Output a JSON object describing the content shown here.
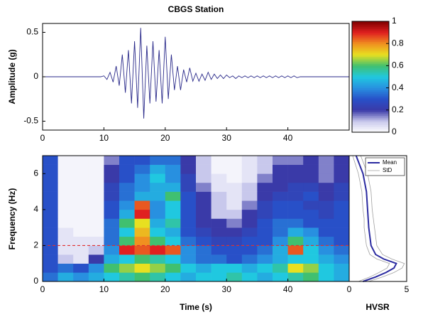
{
  "chart_data": [
    {
      "type": "line",
      "title": "CBGS Station",
      "ylabel": "Amplitude (g)",
      "color": "#2a2a8a",
      "xlim": [
        0,
        50
      ],
      "xticks": [
        0,
        10,
        20,
        30,
        40
      ],
      "ylim": [
        -0.6,
        0.6
      ],
      "yticks": [
        -0.5,
        0,
        0.5
      ],
      "x": [
        0,
        0.5,
        1,
        1.5,
        2,
        2.5,
        3,
        3.5,
        4,
        4.5,
        5,
        5.5,
        6,
        6.5,
        7,
        7.5,
        8,
        8.5,
        9,
        9.5,
        10,
        10.5,
        11,
        11.5,
        12,
        12.5,
        13,
        13.5,
        14,
        14.5,
        15,
        15.5,
        16,
        16.5,
        17,
        17.5,
        18,
        18.5,
        19,
        19.5,
        20,
        20.5,
        21,
        21.5,
        22,
        22.5,
        23,
        23.5,
        24,
        24.5,
        25,
        25.5,
        26,
        26.5,
        27,
        27.5,
        28,
        28.5,
        29,
        29.5,
        30,
        30.5,
        31,
        31.5,
        32,
        32.5,
        33,
        33.5,
        34,
        34.5,
        35,
        35.5,
        36,
        36.5,
        37,
        37.5,
        38,
        38.5,
        39,
        39.5,
        40,
        40.5,
        41,
        41.5,
        42,
        42.5,
        43,
        43.5,
        44,
        44.5,
        45,
        45.5,
        46,
        46.5,
        47,
        47.5,
        48,
        48.5,
        49,
        49.5,
        50
      ],
      "values": [
        0,
        0,
        0,
        0,
        0,
        0,
        0,
        0,
        0,
        0,
        0,
        0,
        0,
        0,
        0,
        0,
        0,
        0,
        0,
        0,
        0.01,
        -0.03,
        0.05,
        -0.06,
        0.12,
        -0.1,
        0.25,
        -0.18,
        0.3,
        -0.3,
        0.4,
        -0.35,
        0.55,
        -0.47,
        0.35,
        -0.3,
        0.4,
        -0.28,
        0.3,
        -0.3,
        0.45,
        -0.25,
        0.25,
        -0.15,
        0.12,
        -0.15,
        0.08,
        -0.06,
        0.1,
        -0.05,
        0.04,
        -0.05,
        0.03,
        -0.04,
        0.05,
        -0.03,
        0.03,
        -0.02,
        0.02,
        -0.02,
        0.02,
        -0.01,
        0.01,
        -0.02,
        0.01,
        -0.01,
        0.01,
        -0.01,
        0.01,
        -0.01,
        0.01,
        -0.01,
        0.01,
        -0.01,
        0.01,
        -0.01,
        0.01,
        -0.01,
        0.01,
        -0.01,
        0.01,
        -0.01,
        0.01,
        -0.01,
        0,
        0,
        0,
        0,
        0,
        0,
        0,
        0,
        0,
        0,
        0,
        0,
        0,
        0,
        0,
        0,
        0
      ]
    },
    {
      "type": "colorbar",
      "ylim": [
        0,
        1
      ],
      "yticks": [
        0,
        0.2,
        0.4,
        0.6,
        0.8,
        1
      ],
      "colors": [
        "#ffffff",
        "#c8c8ec",
        "#3a3aa8",
        "#2850c8",
        "#2890e0",
        "#20c8e0",
        "#40c070",
        "#e8e020",
        "#f09020",
        "#e02020",
        "#800000"
      ]
    },
    {
      "type": "heatmap",
      "xlabel": "Time (s)",
      "ylabel": "Frequency (Hz)",
      "xlim": [
        0,
        50
      ],
      "xticks": [
        0,
        10,
        20,
        30,
        40
      ],
      "ylim": [
        0,
        7
      ],
      "yticks": [
        0,
        2,
        4,
        6
      ],
      "xbins": [
        0,
        2.5,
        5,
        7.5,
        10,
        12.5,
        15,
        17.5,
        20,
        22.5,
        25,
        27.5,
        30,
        32.5,
        35,
        37.5,
        40,
        42.5,
        45,
        47.5,
        50
      ],
      "ybins": [
        0,
        0.5,
        1,
        1.5,
        2,
        2.5,
        3,
        3.5,
        4,
        4.5,
        5,
        5.5,
        6,
        6.5,
        7
      ],
      "z": [
        [
          0.35,
          0.45,
          0.4,
          0.45,
          0.5,
          0.55,
          0.6,
          0.55,
          0.5,
          0.45,
          0.5,
          0.5,
          0.55,
          0.5,
          0.45,
          0.5,
          0.55,
          0.6,
          0.5,
          0.45
        ],
        [
          0.3,
          0.35,
          0.3,
          0.4,
          0.6,
          0.65,
          0.7,
          0.65,
          0.6,
          0.5,
          0.45,
          0.5,
          0.5,
          0.45,
          0.5,
          0.55,
          0.7,
          0.65,
          0.5,
          0.45
        ],
        [
          0.3,
          0.1,
          0.05,
          0.2,
          0.45,
          0.5,
          0.6,
          0.55,
          0.5,
          0.4,
          0.35,
          0.35,
          0.3,
          0.35,
          0.4,
          0.45,
          0.5,
          0.5,
          0.45,
          0.4
        ],
        [
          0.3,
          0.05,
          0.05,
          0.1,
          0.4,
          0.9,
          0.85,
          0.9,
          0.85,
          0.4,
          0.35,
          0.3,
          0.3,
          0.3,
          0.35,
          0.45,
          0.85,
          0.5,
          0.4,
          0.35
        ],
        [
          0.3,
          0.05,
          0.05,
          0.05,
          0.35,
          0.6,
          0.8,
          0.6,
          0.5,
          0.35,
          0.3,
          0.25,
          0.25,
          0.3,
          0.3,
          0.4,
          0.6,
          0.45,
          0.35,
          0.3
        ],
        [
          0.3,
          0.05,
          0.02,
          0.02,
          0.35,
          0.5,
          0.75,
          0.5,
          0.45,
          0.3,
          0.25,
          0.2,
          0.2,
          0.25,
          0.3,
          0.35,
          0.45,
          0.4,
          0.3,
          0.3
        ],
        [
          0.3,
          0.02,
          0.02,
          0.02,
          0.35,
          0.6,
          0.7,
          0.45,
          0.55,
          0.3,
          0.2,
          0.2,
          0.15,
          0.2,
          0.3,
          0.35,
          0.35,
          0.3,
          0.3,
          0.3
        ],
        [
          0.3,
          0.02,
          0.02,
          0.02,
          0.3,
          0.45,
          0.9,
          0.4,
          0.5,
          0.3,
          0.2,
          0.1,
          0.1,
          0.2,
          0.25,
          0.3,
          0.3,
          0.3,
          0.25,
          0.3
        ],
        [
          0.3,
          0.02,
          0.02,
          0.02,
          0.3,
          0.4,
          0.85,
          0.4,
          0.5,
          0.3,
          0.2,
          0.1,
          0.05,
          0.15,
          0.25,
          0.3,
          0.3,
          0.25,
          0.25,
          0.3
        ],
        [
          0.3,
          0.02,
          0.02,
          0.02,
          0.25,
          0.35,
          0.45,
          0.45,
          0.6,
          0.3,
          0.2,
          0.1,
          0.05,
          0.1,
          0.2,
          0.25,
          0.25,
          0.3,
          0.2,
          0.25
        ],
        [
          0.3,
          0.02,
          0.02,
          0.02,
          0.25,
          0.35,
          0.4,
          0.45,
          0.45,
          0.25,
          0.15,
          0.05,
          0.05,
          0.1,
          0.2,
          0.2,
          0.25,
          0.25,
          0.2,
          0.25
        ],
        [
          0.3,
          0.02,
          0.02,
          0.02,
          0.2,
          0.3,
          0.4,
          0.5,
          0.4,
          0.25,
          0.1,
          0.05,
          0.02,
          0.05,
          0.15,
          0.2,
          0.2,
          0.2,
          0.15,
          0.2
        ],
        [
          0.3,
          0.02,
          0.02,
          0.02,
          0.2,
          0.3,
          0.35,
          0.45,
          0.4,
          0.2,
          0.1,
          0.02,
          0.02,
          0.05,
          0.1,
          0.2,
          0.2,
          0.2,
          0.15,
          0.2
        ],
        [
          0.3,
          0.02,
          0.02,
          0.02,
          0.15,
          0.3,
          0.3,
          0.35,
          0.35,
          0.2,
          0.1,
          0.02,
          0.02,
          0.05,
          0.1,
          0.15,
          0.15,
          0.2,
          0.15,
          0.2
        ]
      ],
      "hline": {
        "value": 2,
        "color": "#e03030"
      }
    },
    {
      "type": "profile",
      "xlabel": "HVSR",
      "xlim": [
        0,
        5
      ],
      "xticks": [
        0,
        5
      ],
      "ylim": [
        0,
        7
      ],
      "legend": "upper right",
      "y": [
        0,
        0.25,
        0.5,
        0.75,
        1,
        1.25,
        1.5,
        2,
        2.5,
        3,
        3.5,
        4,
        5,
        6,
        7
      ],
      "series": [
        {
          "name": "Mean",
          "color": "#2a2aa0",
          "values": [
            1.2,
            2.3,
            3.2,
            3.9,
            4.1,
            3.0,
            2.3,
            1.9,
            1.8,
            1.7,
            1.65,
            1.6,
            1.5,
            1.2,
            0.6
          ]
        },
        {
          "name": "StD",
          "color": "#a0a0a0",
          "values": [
            1.7,
            2.9,
            3.9,
            4.6,
            4.8,
            3.7,
            2.9,
            2.4,
            2.3,
            2.2,
            2.1,
            2.0,
            1.9,
            1.6,
            1.0
          ],
          "lower": [
            0.8,
            1.8,
            2.6,
            3.3,
            3.5,
            2.4,
            1.8,
            1.5,
            1.4,
            1.3,
            1.3,
            1.2,
            1.1,
            0.8,
            0.3
          ]
        }
      ]
    }
  ]
}
